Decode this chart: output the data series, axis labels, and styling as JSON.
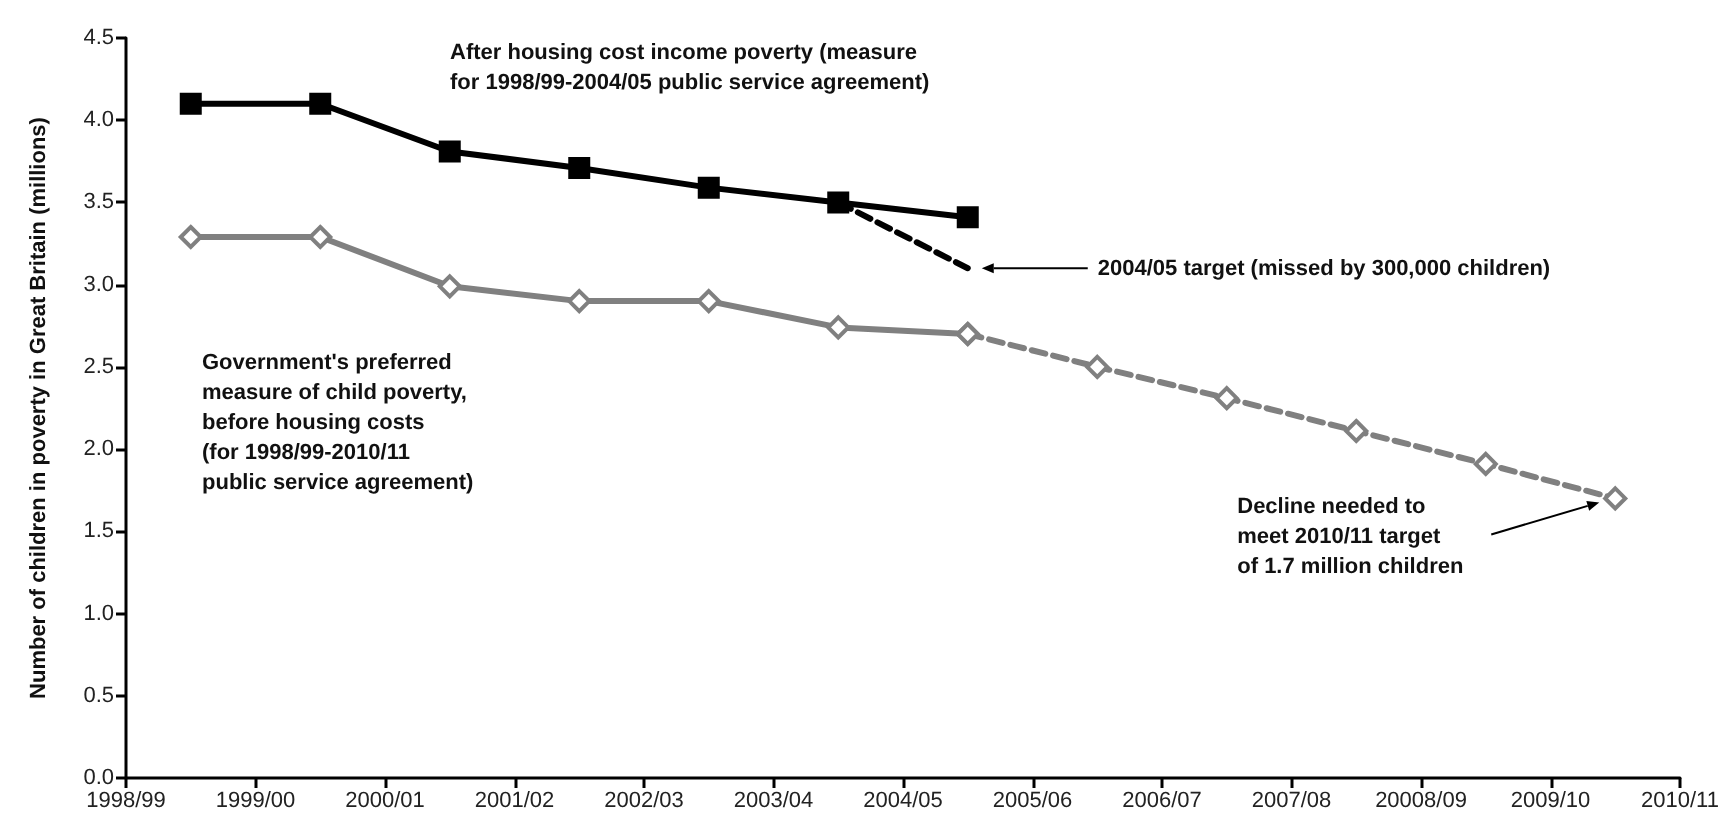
{
  "chart_data": {
    "type": "line",
    "ylabel": "Number of children in poverty in Great Britain (millions)",
    "categories": [
      "1998/99",
      null,
      "1999/00",
      null,
      "2000/01",
      null,
      "2001/02",
      null,
      "2002/03",
      null,
      "2003/04",
      null,
      "2004/05",
      null,
      "2005/06",
      null,
      "2006/07",
      null,
      "2007/08",
      null,
      "20008/09",
      null,
      "2009/10",
      null,
      "2010/11"
    ],
    "ylim": [
      0,
      4.5
    ],
    "yticks": [
      {
        "value": 0,
        "label": "0.0"
      },
      {
        "value": 0.5,
        "label": "0.5"
      },
      {
        "value": 1,
        "label": "1.0"
      },
      {
        "value": 1.5,
        "label": "1.5"
      },
      {
        "value": 2,
        "label": "2.0"
      },
      {
        "value": 2.5,
        "label": "2.5"
      },
      {
        "value": 3,
        "label": "3.0"
      },
      {
        "value": 3.5,
        "label": "3.5"
      },
      {
        "value": 4,
        "label": "4.0"
      },
      {
        "value": 4.5,
        "label": "4.5"
      }
    ],
    "series": [
      {
        "color": "#000000",
        "marker": "square",
        "line_style": "solid",
        "values": [
          null,
          4.1,
          null,
          4.1,
          null,
          3.81,
          null,
          3.71,
          null,
          3.59,
          null,
          3.5,
          null,
          3.41,
          null,
          null,
          null,
          null,
          null,
          null,
          null,
          null,
          null,
          null,
          null
        ]
      },
      {
        "color": "#000000",
        "marker": "none",
        "line_style": "dashed",
        "values": [
          null,
          null,
          null,
          null,
          null,
          null,
          null,
          null,
          null,
          null,
          null,
          3.5,
          null,
          3.1,
          null,
          null,
          null,
          null,
          null,
          null,
          null,
          null,
          null,
          null,
          null
        ]
      },
      {
        "color": "#808080",
        "marker": "diamond",
        "line_style": "solid",
        "values": [
          null,
          3.29,
          null,
          3.29,
          null,
          2.99,
          null,
          2.9,
          null,
          2.9,
          null,
          2.74,
          null,
          2.7,
          null,
          null,
          null,
          null,
          null,
          null,
          null,
          null,
          null,
          null,
          null
        ]
      },
      {
        "color": "#808080",
        "marker": "diamond",
        "line_style": "dashed",
        "values": [
          null,
          null,
          null,
          null,
          null,
          null,
          null,
          null,
          null,
          null,
          null,
          null,
          null,
          2.7,
          null,
          2.5,
          null,
          2.31,
          null,
          2.11,
          null,
          1.91,
          null,
          1.7,
          null
        ]
      }
    ],
    "annotations": [
      "After housing cost income poverty (measure\nfor 1998/99-2004/05 public service agreement)",
      "Government's preferred\nmeasure of child poverty,\nbefore housing costs\n(for 1998/99-2010/11\npublic service agreement)",
      "2004/05 target (missed by 300,000 children)",
      "Decline needed to\nmeet 2010/11 target\nof 1.7 million children"
    ]
  }
}
